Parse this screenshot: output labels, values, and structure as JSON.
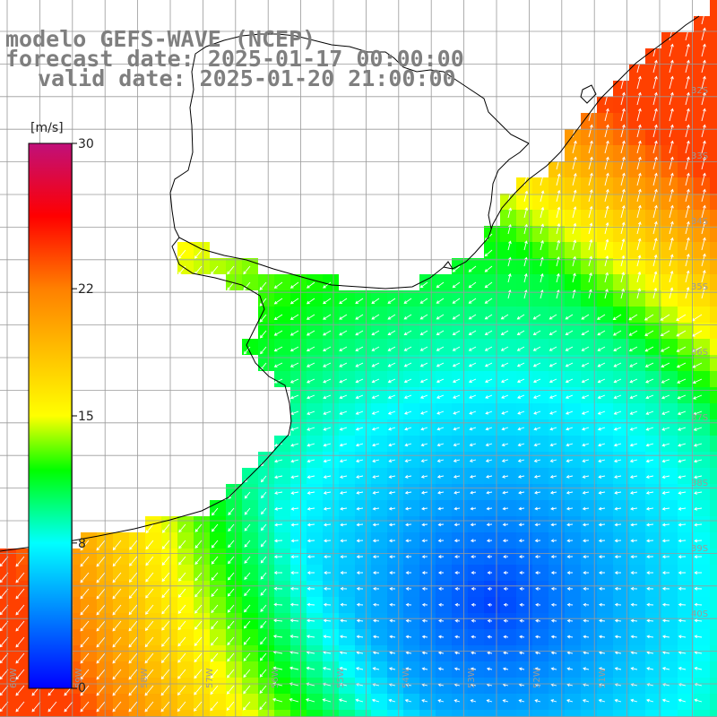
{
  "title": {
    "model": "modelo GEFS-WAVE (NCEP)",
    "forecast": "forecast date: 2025-01-17 00:00:00",
    "valid": "valid date: 2025-01-20 21:00:00"
  },
  "colorbar": {
    "unit": "[m/s]",
    "ticks": [
      {
        "value": 30,
        "label": "30"
      },
      {
        "value": 22,
        "label": "22"
      },
      {
        "value": 15,
        "label": "15"
      },
      {
        "value": 8,
        "label": "8"
      },
      {
        "value": 0,
        "label": "0"
      }
    ],
    "stops": [
      {
        "v": 0,
        "color": "#0000ff"
      },
      {
        "v": 8,
        "color": "#00ffff"
      },
      {
        "v": 12,
        "color": "#00ff00"
      },
      {
        "v": 15,
        "color": "#ffff00"
      },
      {
        "v": 22,
        "color": "#ff8000"
      },
      {
        "v": 26,
        "color": "#ff0000"
      },
      {
        "v": 30,
        "color": "#c0107a"
      }
    ]
  },
  "map": {
    "lon_range": [
      -61,
      -50
    ],
    "lat_range": [
      -41,
      -30
    ],
    "grid_step": 0.5,
    "land_color": "#ffffff",
    "gridline_color": "#9a9a9a",
    "coast_color": "#000000",
    "arrow_color": "#ffffff"
  },
  "lon_labels": [
    "60W",
    "59W",
    "58W",
    "57W",
    "56W",
    "55W",
    "54W",
    "53W",
    "52W",
    "51W"
  ],
  "lat_labels": [
    "32S",
    "33S",
    "34S",
    "35S",
    "36S",
    "37S",
    "38S",
    "39S",
    "40S"
  ]
}
